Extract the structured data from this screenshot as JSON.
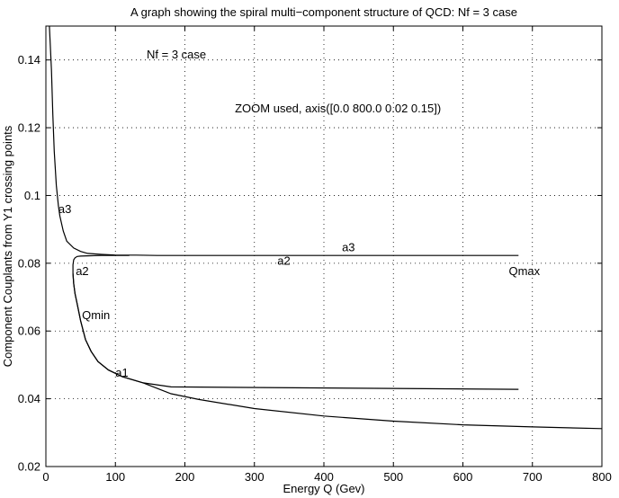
{
  "chart_data": {
    "type": "line",
    "title": "A graph showing the spiral multi−component structure of QCD: Nf = 3 case",
    "xlabel": "Energy Q (Gev)",
    "ylabel": "Component Couplants from Y1 crossing points",
    "xlim": [
      0,
      800
    ],
    "ylim": [
      0.02,
      0.15
    ],
    "xticks": [
      0,
      100,
      200,
      300,
      400,
      500,
      600,
      700,
      800
    ],
    "yticks": [
      0.02,
      0.04,
      0.06,
      0.08,
      0.1,
      0.12,
      0.14
    ],
    "xtick_labels": [
      "0",
      "100",
      "200",
      "300",
      "400",
      "500",
      "600",
      "700",
      "800"
    ],
    "ytick_labels": [
      "0.02",
      "0.04",
      "0.06",
      "0.08",
      "0.1",
      "0.12",
      "0.14"
    ],
    "grid": true,
    "series": [
      {
        "x": [
          5,
          8,
          10,
          12,
          15,
          18,
          20,
          25,
          30,
          40,
          50,
          60,
          80,
          100,
          130,
          160,
          200,
          680
        ],
        "y": [
          0.15,
          0.137,
          0.124,
          0.113,
          0.103,
          0.097,
          0.094,
          0.0895,
          0.0865,
          0.0845,
          0.0835,
          0.0829,
          0.0826,
          0.0824,
          0.0824,
          0.0823,
          0.0823,
          0.0823
        ]
      },
      {
        "x": [
          120,
          100,
          80,
          60,
          50,
          45,
          42,
          40,
          39,
          39,
          40,
          42,
          45,
          50,
          57,
          65,
          75,
          90,
          110,
          140,
          180,
          680
        ],
        "y": [
          0.0823,
          0.0823,
          0.0823,
          0.0822,
          0.0821,
          0.082,
          0.0816,
          0.081,
          0.0795,
          0.077,
          0.074,
          0.071,
          0.068,
          0.063,
          0.0575,
          0.054,
          0.051,
          0.0485,
          0.0465,
          0.0447,
          0.0435,
          0.0428
        ]
      },
      {
        "x": [
          39,
          40,
          42,
          45,
          50,
          57,
          65,
          75,
          90,
          110,
          140,
          180,
          220,
          300,
          400,
          500,
          600,
          700,
          800
        ],
        "y": [
          0.077,
          0.074,
          0.071,
          0.068,
          0.063,
          0.0575,
          0.054,
          0.051,
          0.0485,
          0.0465,
          0.0447,
          0.0415,
          0.0398,
          0.0371,
          0.0349,
          0.0334,
          0.0323,
          0.0317,
          0.0312
        ]
      }
    ],
    "annotations": [
      {
        "text": "Nf = 3 case",
        "x": 145,
        "y": 0.1405
      },
      {
        "text": "ZOOM used, axis([0.0 800.0 0.02 0.15])",
        "x": 272,
        "y": 0.1245
      },
      {
        "text": "a3",
        "x": 18,
        "y": 0.0948
      },
      {
        "text": "a2",
        "x": 43,
        "y": 0.0765
      },
      {
        "text": "Qmin",
        "x": 52,
        "y": 0.0635
      },
      {
        "text": "a1",
        "x": 100,
        "y": 0.0465
      },
      {
        "text": "a3",
        "x": 426,
        "y": 0.0835
      },
      {
        "text": "a2",
        "x": 333,
        "y": 0.0795
      },
      {
        "text": "Qmax",
        "x": 666,
        "y": 0.0765
      }
    ]
  }
}
